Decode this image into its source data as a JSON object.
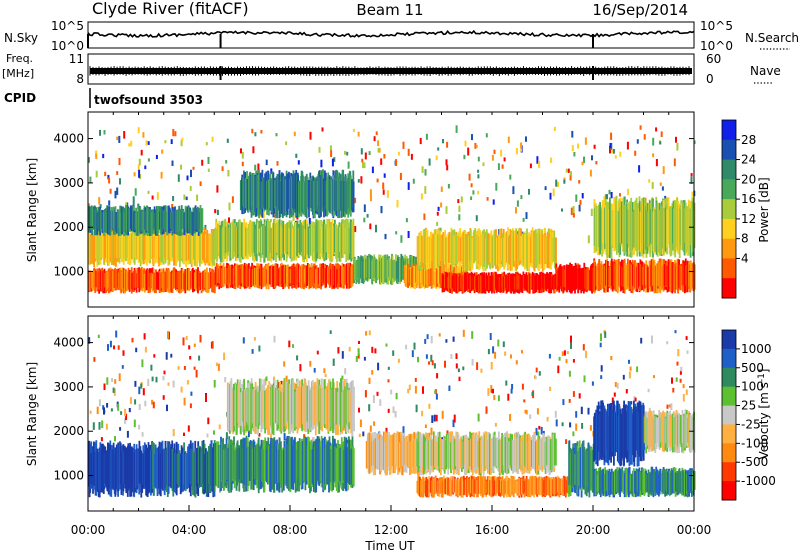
{
  "header": {
    "station": "Clyde River (fitACF)",
    "beam": "Beam 11",
    "date": "16/Sep/2014"
  },
  "strips": {
    "nsky_label": "N.Sky",
    "nsearch_label": "N.Search",
    "freq_label": "Freq.",
    "freq_unit": "[MHz]",
    "nave_label": "Nave",
    "cpid_label": "CPID",
    "cpid_value": "twofsound 3503",
    "nsky_ticks": [
      "10^5",
      "10^0"
    ],
    "nsearch_ticks": [
      "10^5",
      "10^0"
    ],
    "freq_ticks": [
      "11",
      "8"
    ],
    "nave_ticks": [
      "60",
      "0"
    ]
  },
  "chart_data": [
    {
      "type": "heatmap",
      "panel": "power",
      "ylabel": "Slant Range [km]",
      "xlim": [
        0,
        24
      ],
      "ylim": [
        200,
        4600
      ],
      "yticks": [
        "4000",
        "3000",
        "2000",
        "1000"
      ],
      "colorbar": {
        "label": "Power [dB]",
        "ticks": [
          "28",
          "24",
          "20",
          "16",
          "12",
          "8",
          "4"
        ],
        "colors": [
          "#1020e8",
          "#1a50b0",
          "#2f8a6a",
          "#4aa85a",
          "#a8cc3a",
          "#ffd020",
          "#ff9a10",
          "#ff5a00",
          "#ff0000"
        ]
      },
      "bands": [
        {
          "t0": 0.0,
          "t1": 5.0,
          "r0": 500,
          "r1": 1100,
          "level": 7
        },
        {
          "t0": 0.0,
          "t1": 5.0,
          "r0": 1100,
          "r1": 2000,
          "level": 5
        },
        {
          "t0": 0.0,
          "t1": 4.5,
          "r0": 1800,
          "r1": 2500,
          "level": 2
        },
        {
          "t0": 5.0,
          "t1": 10.5,
          "r0": 600,
          "r1": 1200,
          "level": 7
        },
        {
          "t0": 5.0,
          "t1": 10.5,
          "r0": 1200,
          "r1": 2200,
          "level": 4
        },
        {
          "t0": 6.0,
          "t1": 10.5,
          "r0": 2200,
          "r1": 3300,
          "level": 2
        },
        {
          "t0": 10.5,
          "t1": 13.0,
          "r0": 700,
          "r1": 1400,
          "level": 3
        },
        {
          "t0": 12.5,
          "t1": 15.0,
          "r0": 600,
          "r1": 1200,
          "level": 6
        },
        {
          "t0": 14.0,
          "t1": 18.5,
          "r0": 500,
          "r1": 1000,
          "level": 8
        },
        {
          "t0": 13.0,
          "t1": 18.5,
          "r0": 1000,
          "r1": 2000,
          "level": 5
        },
        {
          "t0": 18.5,
          "t1": 20.0,
          "r0": 500,
          "r1": 1200,
          "level": 8
        },
        {
          "t0": 20.0,
          "t1": 24.0,
          "r0": 500,
          "r1": 1300,
          "level": 7
        },
        {
          "t0": 20.0,
          "t1": 24.0,
          "r0": 1300,
          "r1": 2700,
          "level": 4
        }
      ]
    },
    {
      "type": "heatmap",
      "panel": "velocity",
      "ylabel": "Slant Range [km]",
      "xlabel": "Time UT",
      "xlim": [
        0,
        24
      ],
      "ylim": [
        200,
        4600
      ],
      "yticks": [
        "4000",
        "3000",
        "2000",
        "1000"
      ],
      "xticks": [
        "00:00",
        "04:00",
        "08:00",
        "12:00",
        "16:00",
        "20:00",
        "00:00"
      ],
      "colorbar": {
        "label": "Velocity [m s^-1]",
        "ticks": [
          "1000",
          "500",
          "100",
          "25",
          "-25",
          "-100",
          "-500",
          "-1000"
        ],
        "colors": [
          "#1a3aa8",
          "#1f5fc8",
          "#2f8a60",
          "#5cc030",
          "#c8c8c8",
          "#ffb040",
          "#ff8a10",
          "#ff3a00",
          "#ff0000"
        ]
      },
      "bands": [
        {
          "t0": 0.0,
          "t1": 2.5,
          "r0": 500,
          "r1": 1800,
          "level": 0
        },
        {
          "t0": 2.5,
          "t1": 5.0,
          "r0": 500,
          "r1": 1800,
          "level": 1
        },
        {
          "t0": 5.0,
          "t1": 10.5,
          "r0": 600,
          "r1": 1900,
          "level": 2
        },
        {
          "t0": 5.5,
          "t1": 10.5,
          "r0": 1900,
          "r1": 3200,
          "level": 4
        },
        {
          "t0": 11.0,
          "t1": 13.5,
          "r0": 1000,
          "r1": 2000,
          "level": 5
        },
        {
          "t0": 13.0,
          "t1": 19.0,
          "r0": 500,
          "r1": 1000,
          "level": 6
        },
        {
          "t0": 13.0,
          "t1": 18.5,
          "r0": 1000,
          "r1": 2000,
          "level": 4
        },
        {
          "t0": 19.0,
          "t1": 20.0,
          "r0": 500,
          "r1": 1800,
          "level": 2
        },
        {
          "t0": 20.0,
          "t1": 22.0,
          "r0": 1200,
          "r1": 2700,
          "level": 0
        },
        {
          "t0": 20.0,
          "t1": 24.0,
          "r0": 500,
          "r1": 1200,
          "level": 2
        },
        {
          "t0": 22.0,
          "t1": 24.0,
          "r0": 1500,
          "r1": 2500,
          "level": 4
        }
      ]
    }
  ]
}
